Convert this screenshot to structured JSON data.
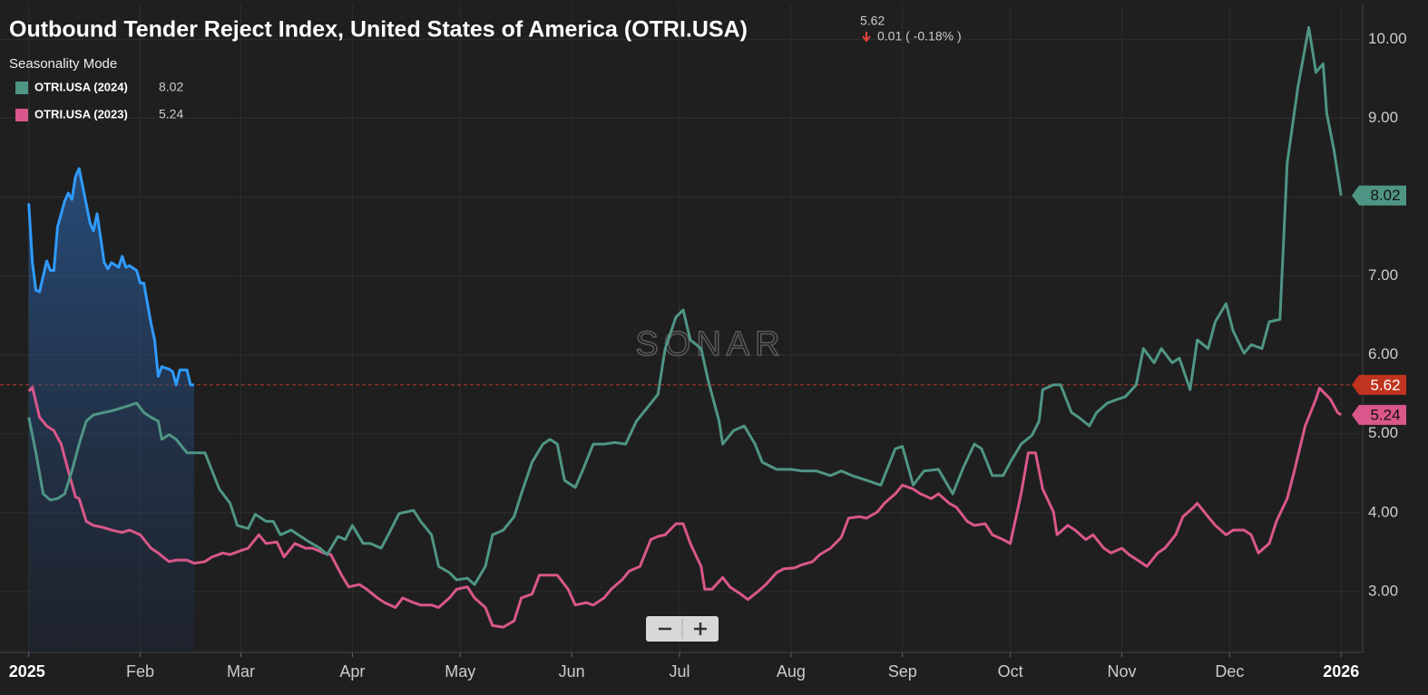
{
  "chart_data": {
    "type": "line",
    "title": "Outbound Tender Reject Index, United States of America (OTRI.USA)",
    "header_value": 5.62,
    "header_change": "0.01 ( -0.18% )",
    "legend_title": "Seasonality Mode",
    "watermark": "SONAR",
    "xlim": [
      -8,
      371
    ],
    "xticks": [
      {
        "value": 0,
        "label": "2025"
      },
      {
        "value": 31,
        "label": "Feb"
      },
      {
        "value": 59,
        "label": "Mar"
      },
      {
        "value": 90,
        "label": "Apr"
      },
      {
        "value": 120,
        "label": "May"
      },
      {
        "value": 151,
        "label": "Jun"
      },
      {
        "value": 181,
        "label": "Jul"
      },
      {
        "value": 212,
        "label": "Aug"
      },
      {
        "value": 243,
        "label": "Sep"
      },
      {
        "value": 273,
        "label": "Oct"
      },
      {
        "value": 304,
        "label": "Nov"
      },
      {
        "value": 334,
        "label": "Dec"
      },
      {
        "value": 365,
        "label": "2026"
      }
    ],
    "ylim": [
      2.23,
      10.44
    ],
    "yticks": [
      {
        "value": 3,
        "label": "3.00"
      },
      {
        "value": 4,
        "label": "4.00"
      },
      {
        "value": 5,
        "label": "5.00"
      },
      {
        "value": 6,
        "label": "6.00"
      },
      {
        "value": 7,
        "label": "7.00"
      },
      {
        "value": 8,
        "label": "8.00"
      },
      {
        "value": 9,
        "label": "9.00"
      },
      {
        "value": 10,
        "label": "10.00"
      }
    ],
    "grid": true,
    "series": [
      {
        "name": "OTRI.USA (2024)",
        "legend_value": "8.02",
        "color": "#4f9585",
        "x": [
          0,
          2,
          4,
          6,
          8,
          10,
          12,
          14,
          16,
          18,
          21,
          23,
          26,
          28,
          30,
          32,
          34,
          36,
          37,
          39,
          41,
          44,
          46,
          49,
          53,
          56,
          58,
          61,
          63,
          66,
          68,
          70,
          73,
          75,
          78,
          81,
          83,
          86,
          88,
          90,
          93,
          95,
          98,
          100,
          103,
          105,
          107,
          109,
          112,
          114,
          117,
          119,
          122,
          124,
          127,
          129,
          132,
          135,
          137,
          140,
          143,
          145,
          147,
          149,
          152,
          154,
          157,
          160,
          163,
          166,
          169,
          172,
          175,
          177,
          180,
          182,
          184,
          187,
          189,
          192,
          193,
          196,
          199,
          202,
          204,
          208,
          212,
          215,
          219,
          223,
          226,
          229,
          233,
          237,
          241,
          243,
          246,
          249,
          253,
          257,
          260,
          263,
          265,
          268,
          271,
          273,
          276,
          279,
          281,
          282,
          285,
          287,
          290,
          292,
          295,
          297,
          300,
          303,
          305,
          308,
          310,
          313,
          315,
          318,
          320,
          323,
          325,
          328,
          330,
          333,
          335,
          338,
          340,
          343,
          345,
          348,
          350,
          353,
          356,
          358,
          360,
          361,
          363,
          365
        ],
        "values": [
          5.21,
          4.76,
          4.24,
          4.16,
          4.18,
          4.24,
          4.53,
          4.87,
          5.16,
          5.24,
          5.27,
          5.29,
          5.33,
          5.36,
          5.39,
          5.27,
          5.21,
          5.16,
          4.93,
          4.99,
          4.93,
          4.76,
          4.76,
          4.76,
          4.3,
          4.12,
          3.84,
          3.8,
          3.98,
          3.89,
          3.89,
          3.72,
          3.78,
          3.72,
          3.63,
          3.55,
          3.47,
          3.7,
          3.66,
          3.84,
          3.61,
          3.61,
          3.55,
          3.72,
          3.99,
          4.01,
          4.03,
          3.89,
          3.72,
          3.32,
          3.24,
          3.15,
          3.17,
          3.09,
          3.32,
          3.72,
          3.78,
          3.95,
          4.24,
          4.64,
          4.87,
          4.93,
          4.87,
          4.41,
          4.32,
          4.53,
          4.87,
          4.87,
          4.89,
          4.87,
          5.16,
          5.33,
          5.5,
          6.08,
          6.48,
          6.57,
          6.19,
          6.08,
          5.67,
          5.16,
          4.87,
          5.04,
          5.1,
          4.87,
          4.64,
          4.55,
          4.55,
          4.53,
          4.53,
          4.47,
          4.53,
          4.47,
          4.41,
          4.35,
          4.81,
          4.84,
          4.35,
          4.53,
          4.55,
          4.24,
          4.58,
          4.87,
          4.81,
          4.47,
          4.47,
          4.64,
          4.87,
          4.98,
          5.16,
          5.56,
          5.62,
          5.62,
          5.27,
          5.21,
          5.1,
          5.27,
          5.39,
          5.44,
          5.47,
          5.62,
          6.08,
          5.9,
          6.08,
          5.9,
          5.96,
          5.56,
          6.19,
          6.08,
          6.42,
          6.65,
          6.3,
          6.02,
          6.13,
          6.08,
          6.42,
          6.45,
          8.43,
          9.4,
          10.15,
          9.58,
          9.69,
          9.06,
          8.6,
          8.02
        ]
      },
      {
        "name": "OTRI.USA (2023)",
        "legend_value": "5.24",
        "color": "#d9578a",
        "x": [
          0,
          1,
          3,
          5,
          7,
          9,
          11,
          13,
          14,
          16,
          18,
          21,
          23,
          26,
          28,
          31,
          34,
          36,
          39,
          41,
          44,
          46,
          49,
          51,
          54,
          56,
          59,
          61,
          64,
          66,
          69,
          71,
          74,
          77,
          79,
          82,
          84,
          87,
          89,
          92,
          94,
          97,
          99,
          102,
          104,
          107,
          109,
          112,
          114,
          117,
          119,
          122,
          124,
          127,
          129,
          132,
          135,
          137,
          140,
          142,
          145,
          147,
          150,
          152,
          155,
          157,
          160,
          162,
          165,
          167,
          170,
          173,
          175,
          177,
          180,
          182,
          184,
          187,
          188,
          190,
          193,
          195,
          198,
          200,
          203,
          205,
          208,
          210,
          213,
          215,
          218,
          220,
          223,
          226,
          228,
          231,
          233,
          236,
          238,
          241,
          243,
          246,
          248,
          251,
          253,
          256,
          258,
          261,
          263,
          266,
          268,
          271,
          273,
          276,
          278,
          280,
          282,
          285,
          286,
          289,
          291,
          294,
          296,
          299,
          301,
          304,
          306,
          309,
          311,
          314,
          316,
          319,
          321,
          324,
          325,
          328,
          330,
          333,
          335,
          338,
          340,
          342,
          345,
          347,
          350,
          352,
          355,
          358,
          359,
          362,
          364,
          365
        ],
        "values": [
          5.54,
          5.59,
          5.21,
          5.1,
          5.04,
          4.87,
          4.53,
          4.2,
          4.18,
          3.89,
          3.84,
          3.81,
          3.78,
          3.75,
          3.78,
          3.72,
          3.55,
          3.49,
          3.38,
          3.4,
          3.4,
          3.36,
          3.38,
          3.44,
          3.49,
          3.47,
          3.52,
          3.55,
          3.72,
          3.61,
          3.63,
          3.44,
          3.61,
          3.55,
          3.55,
          3.49,
          3.47,
          3.21,
          3.06,
          3.09,
          3.03,
          2.92,
          2.86,
          2.8,
          2.92,
          2.86,
          2.83,
          2.83,
          2.8,
          2.92,
          3.03,
          3.06,
          2.92,
          2.8,
          2.57,
          2.55,
          2.63,
          2.92,
          2.97,
          3.21,
          3.21,
          3.21,
          3.03,
          2.83,
          2.86,
          2.83,
          2.92,
          3.03,
          3.15,
          3.26,
          3.32,
          3.66,
          3.7,
          3.72,
          3.86,
          3.86,
          3.61,
          3.32,
          3.03,
          3.03,
          3.18,
          3.06,
          2.97,
          2.9,
          3.01,
          3.09,
          3.24,
          3.29,
          3.3,
          3.34,
          3.38,
          3.47,
          3.55,
          3.69,
          3.93,
          3.95,
          3.93,
          4.01,
          4.12,
          4.24,
          4.35,
          4.3,
          4.24,
          4.18,
          4.24,
          4.12,
          4.07,
          3.89,
          3.84,
          3.86,
          3.72,
          3.66,
          3.61,
          4.24,
          4.76,
          4.76,
          4.3,
          4.01,
          3.72,
          3.84,
          3.78,
          3.66,
          3.72,
          3.55,
          3.49,
          3.55,
          3.47,
          3.38,
          3.32,
          3.49,
          3.55,
          3.72,
          3.95,
          4.07,
          4.12,
          3.95,
          3.84,
          3.72,
          3.78,
          3.78,
          3.72,
          3.49,
          3.61,
          3.89,
          4.18,
          4.53,
          5.1,
          5.44,
          5.58,
          5.44,
          5.27,
          5.24
        ]
      },
      {
        "color": "#2f9bff",
        "area": true,
        "x": [
          0,
          1,
          2,
          3,
          5,
          6,
          7,
          8,
          10,
          11,
          12,
          13,
          14,
          16,
          17,
          18,
          19,
          21,
          22,
          23,
          25,
          26,
          27,
          28,
          30,
          31,
          32,
          34,
          35,
          36,
          37,
          39,
          40,
          41,
          42,
          44,
          45,
          46
        ],
        "values": [
          7.92,
          7.17,
          6.82,
          6.8,
          7.19,
          7.07,
          7.07,
          7.62,
          7.95,
          8.05,
          7.97,
          8.26,
          8.36,
          7.91,
          7.68,
          7.57,
          7.79,
          7.17,
          7.09,
          7.17,
          7.11,
          7.25,
          7.11,
          7.13,
          7.07,
          6.91,
          6.91,
          6.4,
          6.19,
          5.73,
          5.85,
          5.82,
          5.79,
          5.62,
          5.81,
          5.81,
          5.62,
          5.62
        ]
      }
    ]
  }
}
